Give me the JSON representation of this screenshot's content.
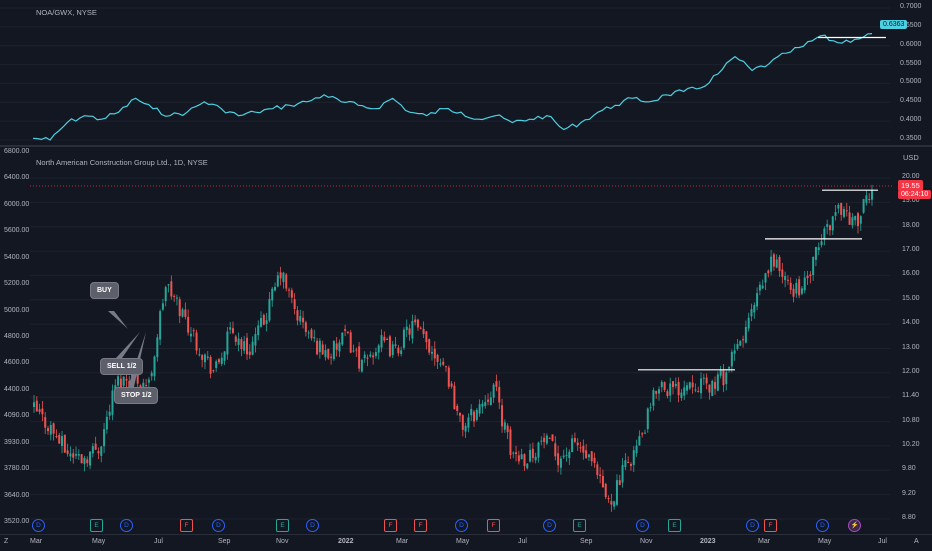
{
  "top": {
    "title": "NOA/GWX, NYSE",
    "price_tag": "0.6363",
    "axis": [
      "0.7000",
      "0.6500",
      "0.6000",
      "0.5500",
      "0.5000",
      "0.4500",
      "0.4000",
      "0.3500"
    ]
  },
  "main": {
    "title": "North American Construction Group Ltd., 1D, NYSE",
    "currency": "USD",
    "price_tag": "19.55",
    "countdown": "06:24:10",
    "axis_right": [
      "20.00",
      "19.00",
      "18.00",
      "17.00",
      "16.00",
      "15.00",
      "14.00",
      "13.00",
      "12.00",
      "11.40",
      "10.80",
      "10.20",
      "9.80",
      "9.20",
      "8.80"
    ],
    "axis_left": [
      "6800.00",
      "6400.00",
      "6000.00",
      "5600.00",
      "5400.00",
      "5200.00",
      "5000.00",
      "4800.00",
      "4600.00",
      "4400.00",
      "4090.00",
      "3930.00",
      "3780.00",
      "3640.00",
      "3520.00"
    ],
    "annotations": {
      "buy": "BUY",
      "sell": "SELL 1/2",
      "stop": "STOP 1/2"
    }
  },
  "time_axis": [
    "Mar",
    "May",
    "Jul",
    "Sep",
    "Nov",
    "2022",
    "Mar",
    "May",
    "Jul",
    "Sep",
    "Nov",
    "2023",
    "Mar",
    "May",
    "Jul"
  ],
  "events": [
    {
      "type": "D",
      "label": "D"
    },
    {
      "type": "E",
      "label": "E"
    },
    {
      "type": "D",
      "label": "D"
    },
    {
      "type": "F",
      "label": "F"
    },
    {
      "type": "D",
      "label": "D"
    },
    {
      "type": "E",
      "label": "E"
    },
    {
      "type": "D",
      "label": "D"
    },
    {
      "type": "F",
      "label": "F"
    },
    {
      "type": "F",
      "label": "F"
    },
    {
      "type": "D",
      "label": "D"
    },
    {
      "type": "F",
      "label": "F"
    },
    {
      "type": "D",
      "label": "D"
    },
    {
      "type": "E",
      "label": "E"
    },
    {
      "type": "D",
      "label": "D"
    },
    {
      "type": "E",
      "label": "E"
    },
    {
      "type": "D",
      "label": "D"
    },
    {
      "type": "F",
      "label": "F"
    },
    {
      "type": "D",
      "label": "D"
    },
    {
      "type": "X",
      "label": "⚡"
    }
  ],
  "footer_icons": {
    "left": "Z",
    "right": "A"
  },
  "colors": {
    "bg": "#131722",
    "up": "#26a69a",
    "down": "#ef5350",
    "line": "#4dd0e1",
    "grid": "#1e222d"
  },
  "chart_data": [
    {
      "type": "line",
      "title": "NOA/GWX, NYSE",
      "ylim": [
        0.33,
        0.71
      ],
      "series": [
        {
          "values": [
            0.335,
            0.33,
            0.38,
            0.4,
            0.39,
            0.41,
            0.45,
            0.42,
            0.4,
            0.41,
            0.44,
            0.42,
            0.4,
            0.41,
            0.42,
            0.43,
            0.44,
            0.46,
            0.44,
            0.43,
            0.42,
            0.45,
            0.41,
            0.4,
            0.42,
            0.41,
            0.39,
            0.4,
            0.38,
            0.39,
            0.4,
            0.36,
            0.38,
            0.41,
            0.43,
            0.45,
            0.44,
            0.46,
            0.47,
            0.48,
            0.52,
            0.57,
            0.53,
            0.55,
            0.58,
            0.6,
            0.63,
            0.61,
            0.62,
            0.6363
          ]
        }
      ]
    },
    {
      "type": "candlestick",
      "title": "North American Construction Group Ltd., 1D, NYSE",
      "ylim": [
        8.8,
        20.0
      ],
      "series": [
        {
          "name": "close",
          "values": [
            12.4,
            11.8,
            11.0,
            10.8,
            11.2,
            13.3,
            13.5,
            13.2,
            16.5,
            15.6,
            14.5,
            13.6,
            15.0,
            14.3,
            15.3,
            16.9,
            15.5,
            14.6,
            14.2,
            14.8,
            13.8,
            14.6,
            14.3,
            15.2,
            14.5,
            13.9,
            11.8,
            12.4,
            13.2,
            11.0,
            10.8,
            11.4,
            10.8,
            11.3,
            10.5,
            9.3,
            10.5,
            11.5,
            13.3,
            13.0,
            13.4,
            13.1,
            13.5,
            14.6,
            16.0,
            17.4,
            16.3,
            16.5,
            18.1,
            19.1,
            18.5,
            19.55
          ]
        }
      ]
    }
  ]
}
